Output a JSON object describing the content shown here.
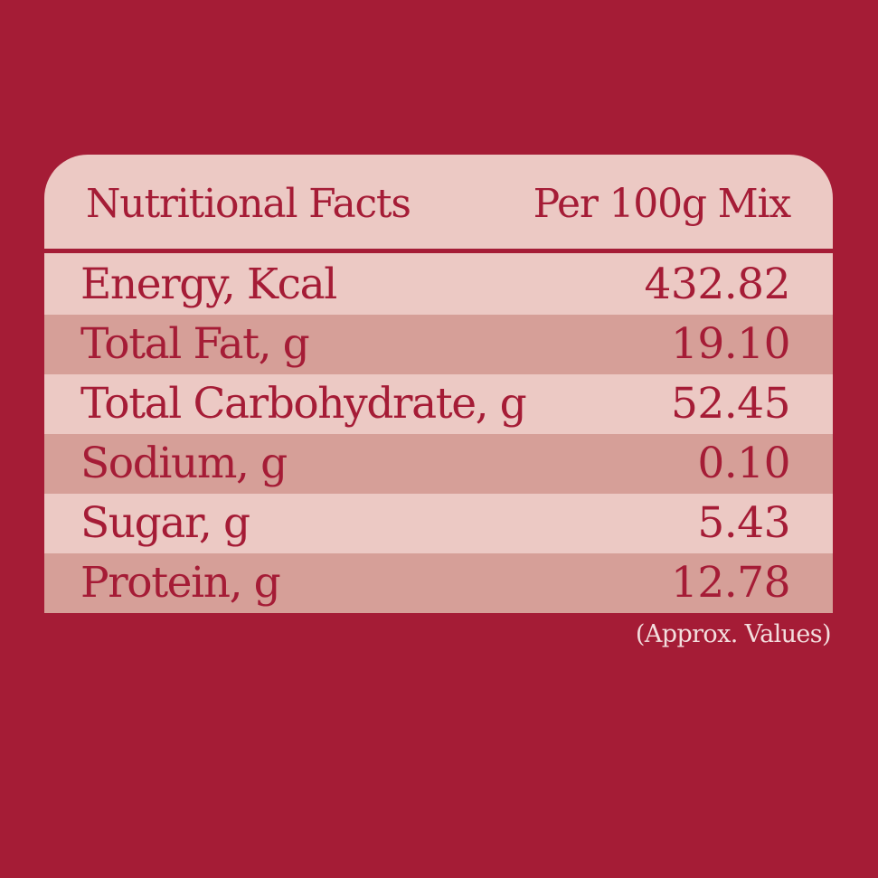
{
  "table": {
    "header": {
      "left": "Nutritional Facts",
      "right": "Per 100g Mix"
    },
    "rows": [
      {
        "label": "Energy, Kcal",
        "value": "432.82"
      },
      {
        "label": "Total Fat, g",
        "value": "19.10"
      },
      {
        "label": "Total Carbohydrate, g",
        "value": "52.45"
      },
      {
        "label": "Sodium, g",
        "value": "0.10"
      },
      {
        "label": "Sugar, g",
        "value": "5.43"
      },
      {
        "label": "Protein, g",
        "value": "12.78"
      }
    ]
  },
  "footnote": "(Approx. Values)",
  "colors": {
    "background": "#a51c36",
    "panel": "#ecc9c4",
    "row_alt": "#d69f98",
    "text": "#a51c36"
  }
}
